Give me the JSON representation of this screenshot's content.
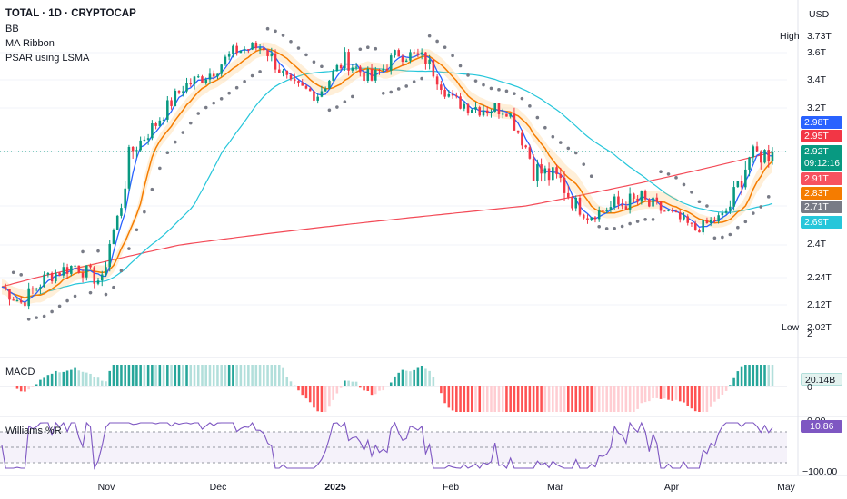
{
  "header": {
    "title": "TOTAL · 1D · CRYPTOCAP",
    "indicators": [
      "BB",
      "MA Ribbon",
      "PSAR using LSMA"
    ],
    "currency": "USD"
  },
  "price_axis": {
    "ticks": [
      "3.6T",
      "3.4T",
      "3.2T",
      "2.4T",
      "2.24T",
      "2.12T",
      "2"
    ],
    "high_label": "High",
    "high_value": "3.73T",
    "low_label": "Low",
    "low_value": "2.02T"
  },
  "price_tags": {
    "bb_upper": {
      "text": "2.98T",
      "color": "#2962ff"
    },
    "ma_red": {
      "text": "2.95T",
      "color": "#f23645"
    },
    "last_price": {
      "text": "2.92T",
      "color": "#089981"
    },
    "countdown": "09:12:16",
    "bb_lower": {
      "text": "2.91T",
      "color": "#f7525f"
    },
    "ma_orange": {
      "text": "2.83T",
      "color": "#f57c00"
    },
    "psar": {
      "text": "2.71T",
      "color": "#787b86"
    },
    "ma_cyan": {
      "text": "2.69T",
      "color": "#26c6da"
    }
  },
  "macd_panel": {
    "title": "MACD",
    "value": "20.14B",
    "zero_label": "0"
  },
  "williams_panel": {
    "title": "Williams %R",
    "value": "−10.86",
    "top_label": "0.00",
    "bottom_label": "−100.00"
  },
  "x_axis": {
    "labels": [
      "Nov",
      "Dec",
      "2025",
      "Feb",
      "Mar",
      "Apr",
      "May"
    ]
  },
  "chart_data": {
    "type": "candlestick",
    "timeframe": "1D",
    "symbol": "TOTAL",
    "close_anchors": [
      {
        "date": "2024-10-09",
        "close": 2.2
      },
      {
        "date": "2024-10-14",
        "close": 2.13
      },
      {
        "date": "2024-10-21",
        "close": 2.25
      },
      {
        "date": "2024-10-28",
        "close": 2.3
      },
      {
        "date": "2024-11-04",
        "close": 2.22
      },
      {
        "date": "2024-11-11",
        "close": 2.9
      },
      {
        "date": "2024-11-18",
        "close": 3.1
      },
      {
        "date": "2024-11-25",
        "close": 3.35
      },
      {
        "date": "2024-12-02",
        "close": 3.45
      },
      {
        "date": "2024-12-09",
        "close": 3.62
      },
      {
        "date": "2024-12-16",
        "close": 3.65
      },
      {
        "date": "2024-12-23",
        "close": 3.35
      },
      {
        "date": "2024-12-30",
        "close": 3.3
      },
      {
        "date": "2025-01-06",
        "close": 3.55
      },
      {
        "date": "2025-01-13",
        "close": 3.4
      },
      {
        "date": "2025-01-20",
        "close": 3.6
      },
      {
        "date": "2025-01-27",
        "close": 3.55
      },
      {
        "date": "2025-02-03",
        "close": 3.25
      },
      {
        "date": "2025-02-10",
        "close": 3.2
      },
      {
        "date": "2025-02-17",
        "close": 3.2
      },
      {
        "date": "2025-02-24",
        "close": 2.85
      },
      {
        "date": "2025-03-03",
        "close": 2.8
      },
      {
        "date": "2025-03-10",
        "close": 2.62
      },
      {
        "date": "2025-03-17",
        "close": 2.7
      },
      {
        "date": "2025-03-24",
        "close": 2.72
      },
      {
        "date": "2025-03-31",
        "close": 2.65
      },
      {
        "date": "2025-04-07",
        "close": 2.52
      },
      {
        "date": "2025-04-14",
        "close": 2.62
      },
      {
        "date": "2025-04-21",
        "close": 2.9
      },
      {
        "date": "2025-04-27",
        "close": 2.92
      }
    ],
    "last_close": 2.92,
    "high": 3.73,
    "low": 2.02,
    "macd_last": 20.14,
    "williams_last": -10.86
  }
}
